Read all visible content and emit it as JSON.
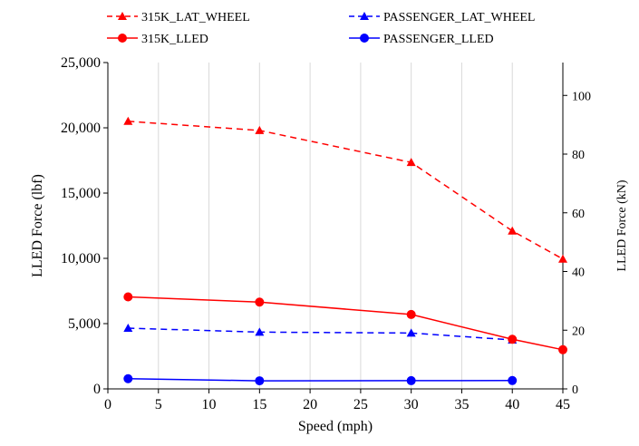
{
  "chart_data": {
    "type": "line",
    "x": [
      2,
      15,
      30,
      40,
      45
    ],
    "xlabel": "Speed (mph)",
    "ylabel": "LLED Force (lbf)",
    "y2label": "LLED Force (kN)",
    "xlim": [
      0,
      45
    ],
    "ylim": [
      0,
      25000
    ],
    "y2lim": [
      0,
      111.2
    ],
    "xticks": [
      "0",
      "5",
      "10",
      "15",
      "20",
      "25",
      "30",
      "35",
      "40",
      "45"
    ],
    "yticks": [
      "0",
      "5,000",
      "10,000",
      "15,000",
      "20,000",
      "25,000"
    ],
    "y2ticks": [
      "0",
      "20",
      "40",
      "60",
      "80",
      "100"
    ],
    "grid": "vertical",
    "legend_position": "top",
    "series": [
      {
        "name": "315K_LAT_WHEEL",
        "x": [
          2,
          15,
          30,
          40,
          45
        ],
        "values": [
          20500,
          19800,
          17350,
          12100,
          9950
        ],
        "color": "#ff0000",
        "dash": "dashed",
        "marker": "triangle"
      },
      {
        "name": "PASSENGER_LAT_WHEEL",
        "x": [
          2,
          15,
          30,
          40
        ],
        "values": [
          4650,
          4350,
          4280,
          3750
        ],
        "color": "#0000ff",
        "dash": "dashed",
        "marker": "triangle"
      },
      {
        "name": "315K_LLED",
        "x": [
          2,
          15,
          30,
          40,
          45
        ],
        "values": [
          7050,
          6650,
          5700,
          3800,
          3000
        ],
        "color": "#ff0000",
        "dash": "solid",
        "marker": "circle"
      },
      {
        "name": "PASSENGER_LLED",
        "x": [
          2,
          15,
          30,
          40
        ],
        "values": [
          780,
          620,
          630,
          640
        ],
        "color": "#0000ff",
        "dash": "solid",
        "marker": "circle"
      }
    ]
  }
}
